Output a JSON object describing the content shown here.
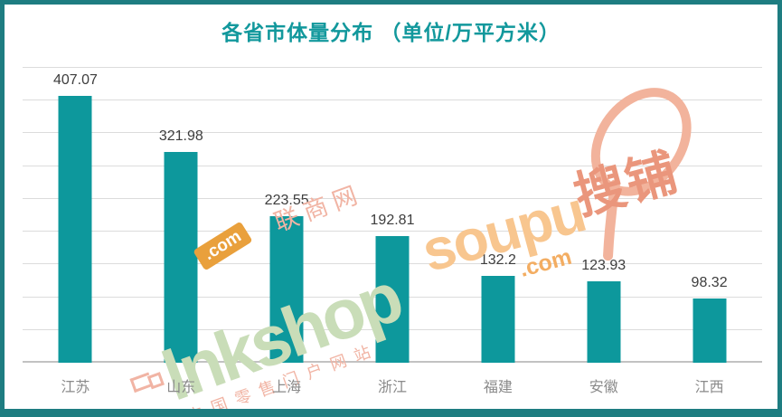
{
  "colors": {
    "border_teal": "#1e7d81",
    "title_teal": "#12989c",
    "bar_teal": "#0d989c"
  },
  "chart_data": {
    "type": "bar",
    "title": "各省市体量分布 （单位/万平方米）",
    "categories": [
      "江苏",
      "山东",
      "上海",
      "浙江",
      "福建",
      "安徽",
      "江西"
    ],
    "values": [
      407.07,
      321.98,
      223.55,
      192.81,
      132.2,
      123.93,
      98.32
    ],
    "value_labels": [
      "407.07",
      "321.98",
      "223.55",
      "192.81",
      "132.2",
      "123.93",
      "98.32"
    ],
    "xlabel": "",
    "ylabel": "",
    "ylim": [
      0,
      450
    ],
    "grid_step": 50,
    "grid": "horizontal-only",
    "legend": "none",
    "y_axis_tick_labels": "none"
  },
  "watermarks": {
    "linkshop": {
      "text": "lnkshop",
      "tag": ".com",
      "brand_cn": "联商网",
      "slogan": "中国零售门户网站"
    },
    "soupu": {
      "text": "soupu",
      "tag": ".com",
      "brand_cn": "搜铺"
    }
  }
}
